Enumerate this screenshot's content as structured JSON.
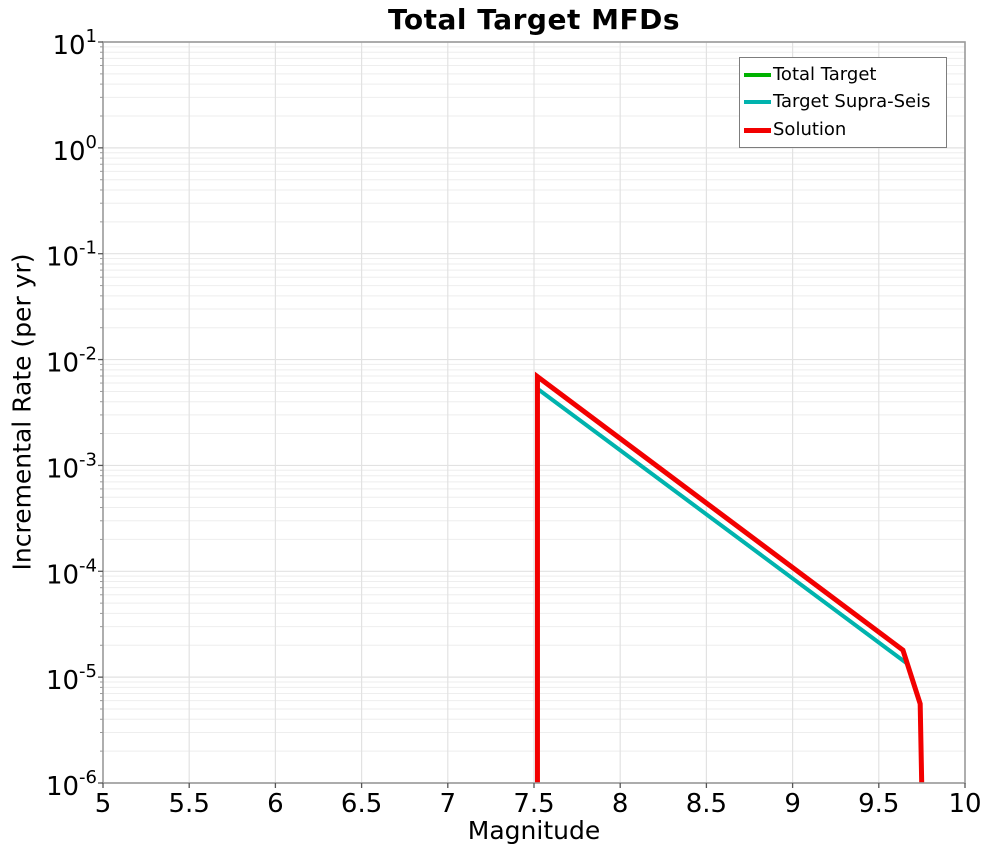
{
  "figure": {
    "background": "#ffffff"
  },
  "chart_data": {
    "type": "line",
    "title": "Total Target MFDs",
    "xlabel": "Magnitude",
    "ylabel": "Incremental Rate (per yr)",
    "x_axis": {
      "min": 5,
      "max": 10,
      "ticks": [
        5,
        5.5,
        6,
        6.5,
        7,
        7.5,
        8,
        8.5,
        9,
        9.5,
        10
      ]
    },
    "y_axis": {
      "scale": "log",
      "min_exp": -6,
      "max_exp": 1,
      "tick_exponents": [
        1,
        0,
        -1,
        -2,
        -3,
        -4,
        -5,
        -6
      ]
    },
    "grid": {
      "show": true,
      "major_color": "#e2e2e2",
      "minor_color": "#eeeeee"
    },
    "frame_color": "#9a9a9a",
    "tick_color": "#555555",
    "minor_tick_color": "#999999",
    "legend": {
      "position": "upper-right",
      "border_color": "#7d7d7d",
      "background": "#ffffff"
    },
    "series": [
      {
        "name": "Total Target",
        "color": "#00b200",
        "line_width": 3.5,
        "points": [
          [
            7.52,
            0.0053
          ],
          [
            9.66,
            1.36e-05
          ]
        ]
      },
      {
        "name": "Target Supra-Seis",
        "color": "#00b3ae",
        "line_width": 4,
        "points": [
          [
            7.52,
            0.0053
          ],
          [
            9.66,
            1.36e-05
          ]
        ]
      },
      {
        "name": "Solution",
        "color": "#f20000",
        "line_width": 5,
        "points": [
          [
            7.52,
            8e-07
          ],
          [
            7.52,
            0.0069
          ],
          [
            9.64,
            1.8e-05
          ],
          [
            9.74,
            5.6e-06
          ],
          [
            9.75,
            8e-07
          ]
        ]
      }
    ]
  }
}
